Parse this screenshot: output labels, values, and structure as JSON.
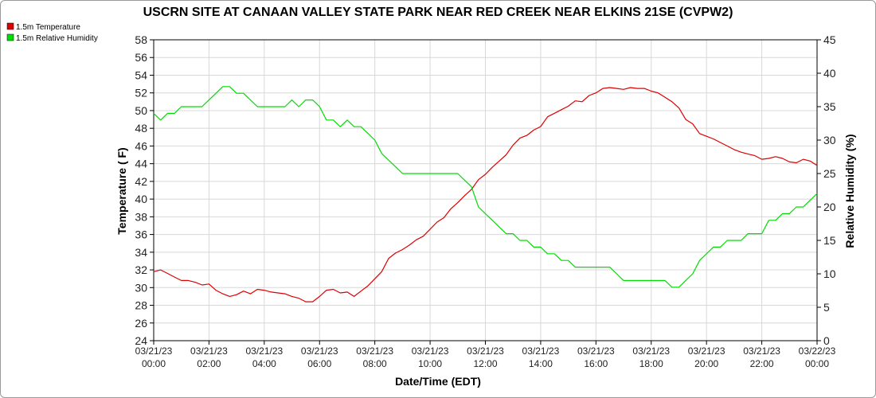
{
  "chart_data": {
    "type": "line",
    "title": "USCRN SITE AT CANAAN VALLEY STATE PARK NEAR RED CREEK NEAR ELKINS 21SE (CVPW2)",
    "xlabel": "Date/Time (EDT)",
    "ylabel": "Temperature ( F)",
    "y2label": "Relative Humidity (%)",
    "ylim": [
      24,
      58
    ],
    "y2lim": [
      0,
      45
    ],
    "xlim_hours": [
      0,
      24
    ],
    "grid": true,
    "legend_position": "top-left",
    "x_tick_labels": [
      {
        "date": "03/21/23",
        "time": "00:00"
      },
      {
        "date": "03/21/23",
        "time": "02:00"
      },
      {
        "date": "03/21/23",
        "time": "04:00"
      },
      {
        "date": "03/21/23",
        "time": "06:00"
      },
      {
        "date": "03/21/23",
        "time": "08:00"
      },
      {
        "date": "03/21/23",
        "time": "10:00"
      },
      {
        "date": "03/21/23",
        "time": "12:00"
      },
      {
        "date": "03/21/23",
        "time": "14:00"
      },
      {
        "date": "03/21/23",
        "time": "16:00"
      },
      {
        "date": "03/21/23",
        "time": "18:00"
      },
      {
        "date": "03/21/23",
        "time": "20:00"
      },
      {
        "date": "03/21/23",
        "time": "22:00"
      },
      {
        "date": "03/22/23",
        "time": "00:00"
      }
    ],
    "y_ticks": [
      "24",
      "26",
      "28",
      "30",
      "32",
      "34",
      "36",
      "38",
      "40",
      "42",
      "44",
      "46",
      "48",
      "50",
      "52",
      "54",
      "56",
      "58"
    ],
    "y2_ticks": [
      "0",
      "5",
      "10",
      "15",
      "20",
      "25",
      "30",
      "35",
      "40",
      "45"
    ],
    "series": [
      {
        "name": "1.5m Temperature",
        "axis": "left",
        "color": "#dd0000",
        "x": [
          0,
          0.25,
          0.5,
          0.75,
          1,
          1.25,
          1.5,
          1.75,
          2,
          2.25,
          2.5,
          2.75,
          3,
          3.25,
          3.5,
          3.75,
          4,
          4.25,
          4.5,
          4.75,
          5,
          5.25,
          5.5,
          5.75,
          6,
          6.25,
          6.5,
          6.75,
          7,
          7.25,
          7.5,
          7.75,
          8,
          8.25,
          8.5,
          8.75,
          9,
          9.25,
          9.5,
          9.75,
          10,
          10.25,
          10.5,
          10.75,
          11,
          11.25,
          11.5,
          11.75,
          12,
          12.25,
          12.5,
          12.75,
          13,
          13.25,
          13.5,
          13.75,
          14,
          14.25,
          14.5,
          14.75,
          15,
          15.25,
          15.5,
          15.75,
          16,
          16.25,
          16.5,
          16.75,
          17,
          17.25,
          17.5,
          17.75,
          18,
          18.25,
          18.5,
          18.75,
          19,
          19.25,
          19.5,
          19.75,
          20,
          20.25,
          20.5,
          20.75,
          21,
          21.25,
          21.5,
          21.75,
          22,
          22.25,
          22.5,
          22.75,
          23,
          23.25,
          23.5,
          23.75,
          24
        ],
        "values": [
          31.8,
          32.0,
          31.6,
          31.2,
          30.8,
          30.8,
          30.6,
          30.3,
          30.4,
          29.7,
          29.3,
          29.0,
          29.2,
          29.6,
          29.3,
          29.8,
          29.7,
          29.5,
          29.4,
          29.3,
          29.0,
          28.8,
          28.4,
          28.4,
          29.0,
          29.7,
          29.8,
          29.4,
          29.5,
          29.0,
          29.6,
          30.2,
          31.0,
          31.8,
          33.3,
          33.9,
          34.3,
          34.8,
          35.4,
          35.8,
          36.6,
          37.4,
          37.9,
          38.9,
          39.6,
          40.4,
          41.1,
          42.2,
          42.8,
          43.6,
          44.3,
          45.0,
          46.1,
          46.9,
          47.2,
          47.8,
          48.2,
          49.3,
          49.7,
          50.1,
          50.5,
          51.1,
          51.0,
          51.7,
          52.0,
          52.5,
          52.6,
          52.5,
          52.4,
          52.6,
          52.5,
          52.5,
          52.2,
          52.0,
          51.5,
          51.0,
          50.3,
          49.0,
          48.5,
          47.4,
          47.1,
          46.8,
          46.4,
          46.0,
          45.6,
          45.3,
          45.1,
          44.9,
          44.5,
          44.6,
          44.8,
          44.6,
          44.2,
          44.1,
          44.5,
          44.3,
          43.8
        ]
      },
      {
        "name": "1.5m Relative Humidity",
        "axis": "right",
        "color": "#00dd00",
        "x": [
          0,
          0.25,
          0.5,
          0.75,
          1,
          1.25,
          1.5,
          1.75,
          2,
          2.25,
          2.5,
          2.75,
          3,
          3.25,
          3.5,
          3.75,
          4,
          4.25,
          4.5,
          4.75,
          5,
          5.25,
          5.5,
          5.75,
          6,
          6.25,
          6.5,
          6.75,
          7,
          7.25,
          7.5,
          7.75,
          8,
          8.25,
          8.5,
          8.75,
          9,
          9.25,
          9.5,
          9.75,
          10,
          10.25,
          10.5,
          10.75,
          11,
          11.25,
          11.5,
          11.75,
          12,
          12.25,
          12.5,
          12.75,
          13,
          13.25,
          13.5,
          13.75,
          14,
          14.25,
          14.5,
          14.75,
          15,
          15.25,
          15.5,
          15.75,
          16,
          16.25,
          16.5,
          16.75,
          17,
          17.25,
          17.5,
          17.75,
          18,
          18.25,
          18.5,
          18.75,
          19,
          19.25,
          19.5,
          19.75,
          20,
          20.25,
          20.5,
          20.75,
          21,
          21.25,
          21.5,
          21.75,
          22,
          22.25,
          22.5,
          22.75,
          23,
          23.25,
          23.5,
          23.75,
          24
        ],
        "values": [
          34,
          33,
          34,
          34,
          35,
          35,
          35,
          35,
          36,
          37,
          38,
          38,
          37,
          37,
          36,
          35,
          35,
          35,
          35,
          35,
          36,
          35,
          36,
          36,
          35,
          33,
          33,
          32,
          33,
          32,
          32,
          31,
          30,
          28,
          27,
          26,
          25,
          25,
          25,
          25,
          25,
          25,
          25,
          25,
          25,
          24,
          23,
          20,
          19,
          18,
          17,
          16,
          16,
          15,
          15,
          14,
          14,
          13,
          13,
          12,
          12,
          11,
          11,
          11,
          11,
          11,
          11,
          10,
          9,
          9,
          9,
          9,
          9,
          9,
          9,
          8,
          8,
          9,
          10,
          12,
          13,
          14,
          14,
          15,
          15,
          15,
          16,
          16,
          16,
          18,
          18,
          19,
          19,
          20,
          20,
          21,
          22
        ]
      }
    ]
  }
}
